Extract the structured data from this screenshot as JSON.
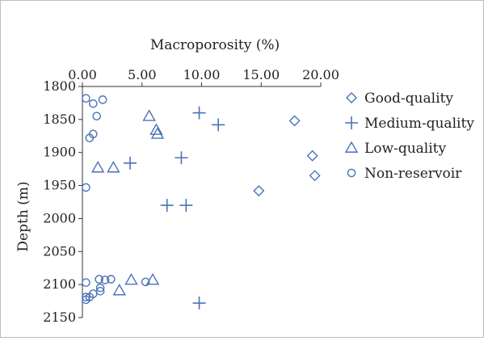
{
  "chart_data": {
    "type": "scatter",
    "xlabel": "Macroporosity (%)",
    "ylabel": "Depth (m)",
    "xlim": [
      0,
      20
    ],
    "ylim": [
      1800,
      2150
    ],
    "y_inverted": true,
    "x_axis_position": "top",
    "x_ticks": [
      "0.00",
      "5.00",
      "10.00",
      "15.00",
      "20.00"
    ],
    "y_ticks": [
      "1800",
      "1850",
      "1900",
      "1950",
      "2000",
      "2050",
      "2100",
      "2150"
    ],
    "legend_position": "right",
    "marker_color": "#4a72b8",
    "series": [
      {
        "name": "Good-quality",
        "marker": "diamond",
        "points": [
          [
            17.8,
            1852
          ],
          [
            19.3,
            1905
          ],
          [
            19.5,
            1935
          ],
          [
            14.8,
            1958
          ]
        ]
      },
      {
        "name": "Medium-quality",
        "marker": "plus",
        "points": [
          [
            9.8,
            1840
          ],
          [
            11.4,
            1858
          ],
          [
            8.3,
            1908
          ],
          [
            4.0,
            1916
          ],
          [
            7.1,
            1980
          ],
          [
            8.7,
            1980
          ],
          [
            9.8,
            2128
          ]
        ]
      },
      {
        "name": "Low-quality",
        "marker": "triangle",
        "points": [
          [
            5.6,
            1845
          ],
          [
            6.2,
            1866
          ],
          [
            6.3,
            1872
          ],
          [
            1.3,
            1923
          ],
          [
            2.6,
            1923
          ],
          [
            4.1,
            2093
          ],
          [
            5.9,
            2093
          ],
          [
            3.1,
            2109
          ]
        ]
      },
      {
        "name": "Non-reservoir",
        "marker": "circle",
        "points": [
          [
            0.3,
            1818
          ],
          [
            1.7,
            1820
          ],
          [
            0.9,
            1826
          ],
          [
            1.2,
            1845
          ],
          [
            0.9,
            1872
          ],
          [
            0.6,
            1878
          ],
          [
            0.3,
            1953
          ],
          [
            0.3,
            2097
          ],
          [
            1.4,
            2092
          ],
          [
            1.9,
            2093
          ],
          [
            2.4,
            2092
          ],
          [
            5.3,
            2096
          ],
          [
            1.5,
            2105
          ],
          [
            1.5,
            2110
          ],
          [
            0.9,
            2114
          ],
          [
            0.6,
            2119
          ],
          [
            0.3,
            2119
          ],
          [
            0.3,
            2123
          ]
        ]
      }
    ]
  }
}
